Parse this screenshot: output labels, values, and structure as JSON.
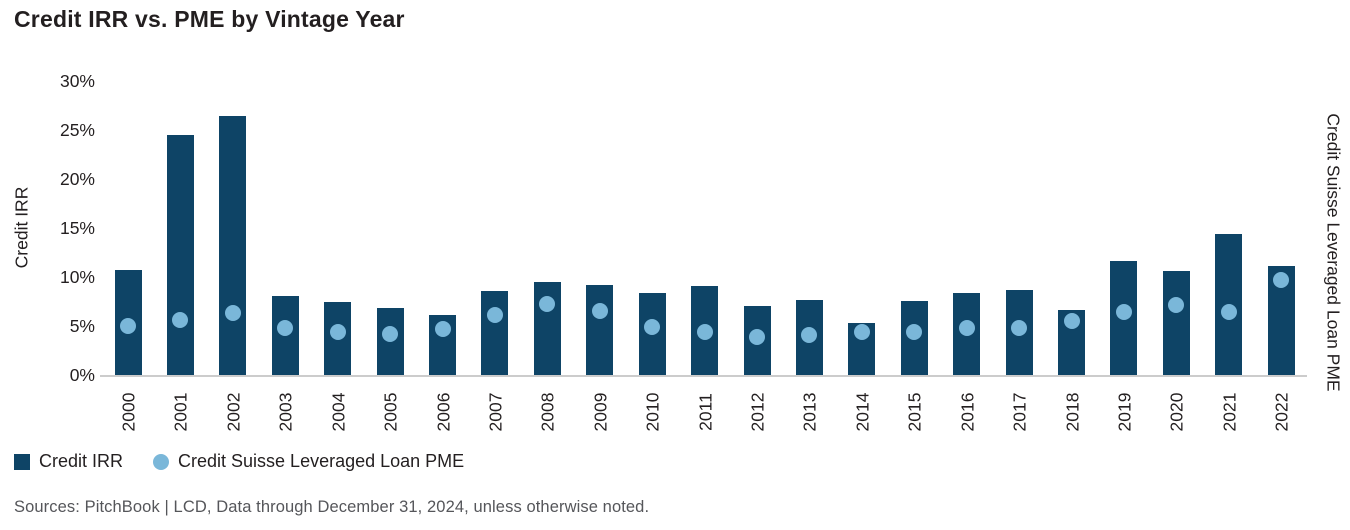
{
  "title": "Credit IRR vs. PME by Vintage Year",
  "axes": {
    "ylabel_left": "Credit IRR",
    "ylabel_right": "Credit Suisse Leveraged Loan PME",
    "ytick_labels": [
      "0%",
      "5%",
      "10%",
      "15%",
      "20%",
      "25%",
      "30%"
    ]
  },
  "legend": {
    "items": [
      {
        "label": "Credit IRR",
        "shape": "square",
        "color": "#0e4466"
      },
      {
        "label": "Credit Suisse Leveraged Loan PME",
        "shape": "circle",
        "color": "#7ab7d9"
      }
    ]
  },
  "source": "Sources: PitchBook | LCD, Data through December 31, 2024, unless otherwise noted.",
  "colors": {
    "bar": "#0e4466",
    "dot": "#7ab7d9",
    "axis_line": "#cccccc",
    "text": "#231f20",
    "source_text": "#55565a"
  },
  "chart_data": {
    "type": "bar",
    "title": "Credit IRR vs. PME by Vintage Year",
    "categories": [
      "2000",
      "2001",
      "2002",
      "2003",
      "2004",
      "2005",
      "2006",
      "2007",
      "2008",
      "2009",
      "2010",
      "2011",
      "2012",
      "2013",
      "2014",
      "2015",
      "2016",
      "2017",
      "2018",
      "2019",
      "2020",
      "2021",
      "2022"
    ],
    "series": [
      {
        "name": "Credit IRR",
        "type": "bar",
        "axis": "left",
        "color": "#0e4466",
        "values": [
          10.7,
          24.5,
          26.4,
          8.1,
          7.5,
          6.8,
          6.1,
          8.6,
          9.5,
          9.2,
          8.4,
          9.1,
          7.0,
          7.7,
          5.3,
          7.6,
          8.4,
          8.7,
          6.6,
          11.6,
          10.6,
          14.4,
          11.1
        ]
      },
      {
        "name": "Credit Suisse Leveraged Loan PME",
        "type": "scatter",
        "axis": "right",
        "color": "#7ab7d9",
        "values": [
          5.0,
          5.6,
          6.3,
          4.8,
          4.4,
          4.2,
          4.7,
          6.1,
          7.2,
          6.5,
          4.9,
          4.4,
          3.9,
          4.1,
          4.4,
          4.4,
          4.8,
          4.8,
          5.5,
          6.4,
          7.1,
          6.4,
          9.7
        ]
      }
    ],
    "xlabel": "",
    "ylabel": "Credit IRR (left) / Credit Suisse Leveraged Loan PME (right)",
    "ylim": [
      0,
      30
    ],
    "ytick_step": 5,
    "ytick_format": "percent",
    "grid": false,
    "legend_position": "bottom-left"
  }
}
